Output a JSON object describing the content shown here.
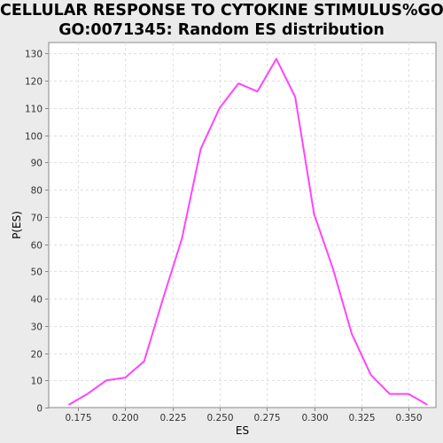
{
  "chart_data": {
    "type": "line",
    "title_lines": [
      "CELLULAR RESPONSE TO CYTOKINE STIMULUS%GO%",
      "GO:0071345: Random ES distribution"
    ],
    "xlabel": "ES",
    "ylabel": "P(ES)",
    "xlim": [
      0.1595,
      0.3645
    ],
    "ylim": [
      0,
      134
    ],
    "x_ticks": [
      0.175,
      0.2,
      0.225,
      0.25,
      0.275,
      0.3,
      0.325,
      0.35
    ],
    "x_tick_labels": [
      "0.175",
      "0.200",
      "0.225",
      "0.250",
      "0.275",
      "0.300",
      "0.325",
      "0.350"
    ],
    "y_ticks": [
      0,
      10,
      20,
      30,
      40,
      50,
      60,
      70,
      80,
      90,
      100,
      110,
      120,
      130
    ],
    "y_tick_labels": [
      "0",
      "10",
      "20",
      "30",
      "40",
      "50",
      "60",
      "70",
      "80",
      "90",
      "100",
      "110",
      "120",
      "130"
    ],
    "grid": true,
    "series": [
      {
        "color": "#ff44ff",
        "x": [
          0.17,
          0.18,
          0.19,
          0.2,
          0.21,
          0.22,
          0.23,
          0.24,
          0.25,
          0.26,
          0.27,
          0.28,
          0.29,
          0.3,
          0.31,
          0.32,
          0.33,
          0.34,
          0.35,
          0.36
        ],
        "y": [
          1,
          5,
          10,
          11,
          17,
          40,
          62,
          95,
          110,
          119,
          116,
          128,
          114,
          71,
          51,
          27,
          12,
          5,
          5,
          1
        ]
      }
    ],
    "colors": {
      "background": "#ebebeb",
      "plot_background": "#ffffff",
      "grid": "#e0e0e0",
      "axis": "#888888",
      "line": "#ff44ff"
    }
  }
}
